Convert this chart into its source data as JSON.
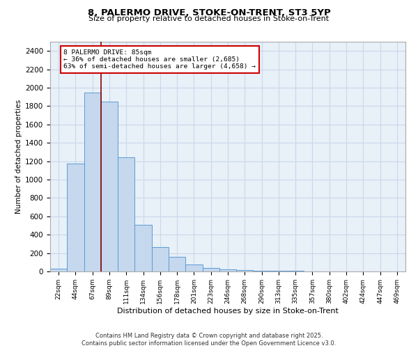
{
  "title1": "8, PALERMO DRIVE, STOKE-ON-TRENT, ST3 5YP",
  "title2": "Size of property relative to detached houses in Stoke-on-Trent",
  "xlabel": "Distribution of detached houses by size in Stoke-on-Trent",
  "ylabel": "Number of detached properties",
  "bar_labels": [
    "22sqm",
    "44sqm",
    "67sqm",
    "89sqm",
    "111sqm",
    "134sqm",
    "156sqm",
    "178sqm",
    "201sqm",
    "223sqm",
    "246sqm",
    "268sqm",
    "290sqm",
    "313sqm",
    "335sqm",
    "357sqm",
    "380sqm",
    "402sqm",
    "424sqm",
    "447sqm",
    "469sqm"
  ],
  "bar_values": [
    30,
    1175,
    1950,
    1850,
    1240,
    510,
    265,
    160,
    75,
    35,
    20,
    12,
    8,
    5,
    4,
    3,
    2,
    2,
    1,
    1,
    1
  ],
  "bar_color": "#c5d8ee",
  "bar_edge_color": "#5b9bd5",
  "vline_color": "#8b0000",
  "annotation_text": "8 PALERMO DRIVE: 85sqm\n← 36% of detached houses are smaller (2,685)\n63% of semi-detached houses are larger (4,658) →",
  "annotation_box_color": "white",
  "annotation_box_edge": "#cc0000",
  "ylim": [
    0,
    2500
  ],
  "yticks": [
    0,
    200,
    400,
    600,
    800,
    1000,
    1200,
    1400,
    1600,
    1800,
    2000,
    2200,
    2400
  ],
  "grid_color": "#c8d8ea",
  "bg_color": "#e8f0f8",
  "footer1": "Contains HM Land Registry data © Crown copyright and database right 2025.",
  "footer2": "Contains public sector information licensed under the Open Government Licence v3.0."
}
